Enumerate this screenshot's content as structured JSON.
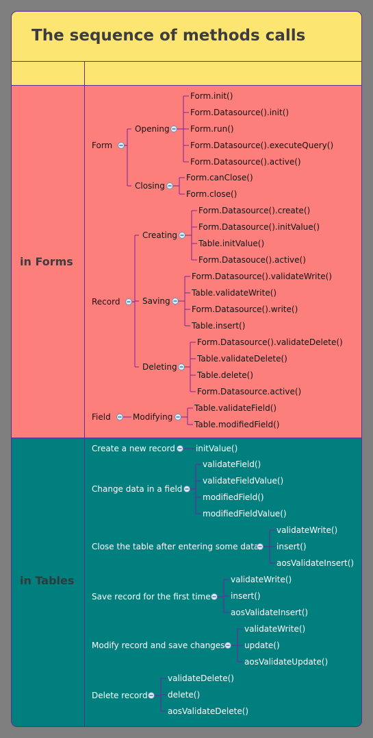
{
  "title": "The sequence of methods calls",
  "rows": {
    "forms": "in Forms",
    "tables": "in Tables"
  },
  "forms": {
    "form": "Form",
    "opening": "Opening",
    "opening_items": [
      "Form.init()",
      "Form.Datasource().init()",
      "Form.run()",
      "Form.Datasource().executeQuery()",
      "Form.Datasource().active()"
    ],
    "closing": "Closing",
    "closing_items": [
      "Form.canClose()",
      "Form.close()"
    ],
    "record": "Record",
    "creating": "Creating",
    "creating_items": [
      "Form.Datasource().create()",
      "Form.Datasource().initValue()",
      "Table.initValue()",
      "Form.Datasouce().active()"
    ],
    "saving": "Saving",
    "saving_items": [
      "Form.Datasource().validateWrite()",
      "Table.validateWrite()",
      "Form.Datasource().write()",
      "Table.insert()"
    ],
    "deleting": "Deleting",
    "deleting_items": [
      "Form.Datasource().validateDelete()",
      "Table.validateDelete()",
      "Table.delete()",
      "Form.Datasource.active()"
    ],
    "field": "Field",
    "modifying": "Modifying",
    "modifying_items": [
      "Table.validateField()",
      "Table.modifiedField()"
    ]
  },
  "tables": [
    {
      "label": "Create a new record",
      "items": [
        "initValue()"
      ]
    },
    {
      "label": "Change data in a field",
      "items": [
        "validateField()",
        "validateFieldValue()",
        "modifiedField()",
        "modifiedFieldValue()"
      ]
    },
    {
      "label": "Close the table after entering some data",
      "items": [
        "validateWrite()",
        "insert()",
        "aosValidateInsert()"
      ]
    },
    {
      "label": "Save record for the first time",
      "items": [
        "validateWrite()",
        "insert()",
        "aosValidateInsert()"
      ]
    },
    {
      "label": "Modify record and save changes",
      "items": [
        "validateWrite()",
        "update()",
        "aosValidateUpdate()"
      ]
    },
    {
      "label": "Delete record",
      "items": [
        "validateDelete()",
        "delete()",
        "aosValidateDelete()"
      ]
    }
  ],
  "colors": {
    "title_band": "#fde572",
    "forms_band": "#fd7f7c",
    "tables_band": "#017f7e",
    "connector": "#7a1fa0",
    "border": "#5b2d8f"
  }
}
